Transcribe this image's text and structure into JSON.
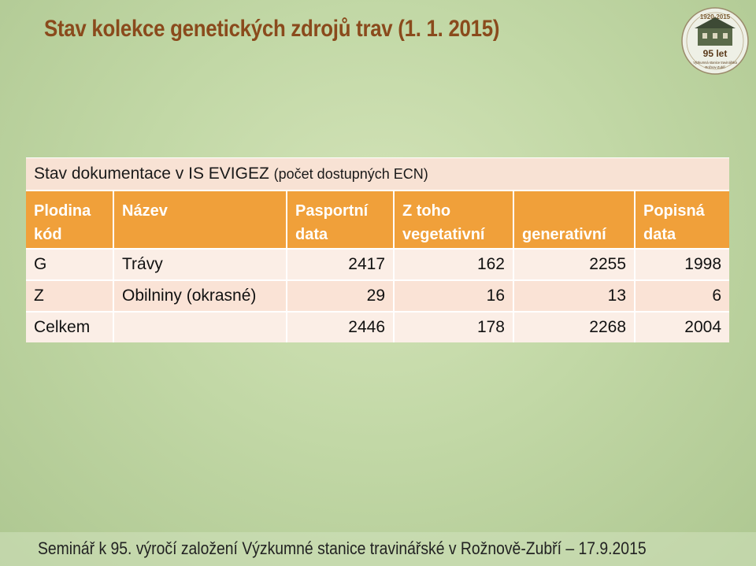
{
  "slide": {
    "title": "Stav kolekce genetických zdrojů trav (1. 1. 2015)",
    "footer": "Seminář k 95. výročí založení Výzkumné stanice travinářské v Rožnově-Zubří – 17.9.2015"
  },
  "logo": {
    "years": "1920-2015",
    "anniversary": "95 let",
    "org_line1": "Výzkumná stanice travinářská",
    "org_line2": "Rožnov-Zubří"
  },
  "table": {
    "caption": "Stav dokumentace v IS EVIGEZ",
    "caption_paren": "(počet dostupných ECN)",
    "headers": {
      "code_line1": "Plodina",
      "code_line2": "kód",
      "name": "Název",
      "passport_line1": "Pasportní",
      "passport_line2": "data",
      "veg_line1": "Z toho",
      "veg_line2": "vegetativní",
      "gen": "generativní",
      "desc_line1": "Popisná",
      "desc_line2": "data"
    },
    "rows": [
      {
        "code": "G",
        "name": "Trávy",
        "passport": "2417",
        "vegetative": "162",
        "generative": "2255",
        "descriptive": "1998"
      },
      {
        "code": "Z",
        "name": "Obilniny (okrasné)",
        "passport": "29",
        "vegetative": "16",
        "generative": "13",
        "descriptive": "6"
      }
    ],
    "total": {
      "label": "Celkem",
      "name": "",
      "passport": "2446",
      "vegetative": "178",
      "generative": "2268",
      "descriptive": "2004"
    }
  },
  "colors": {
    "title": "#8a4a1c",
    "header": "#f0a03a",
    "row": "#fbeee6",
    "caption": "#f8e2d4"
  }
}
